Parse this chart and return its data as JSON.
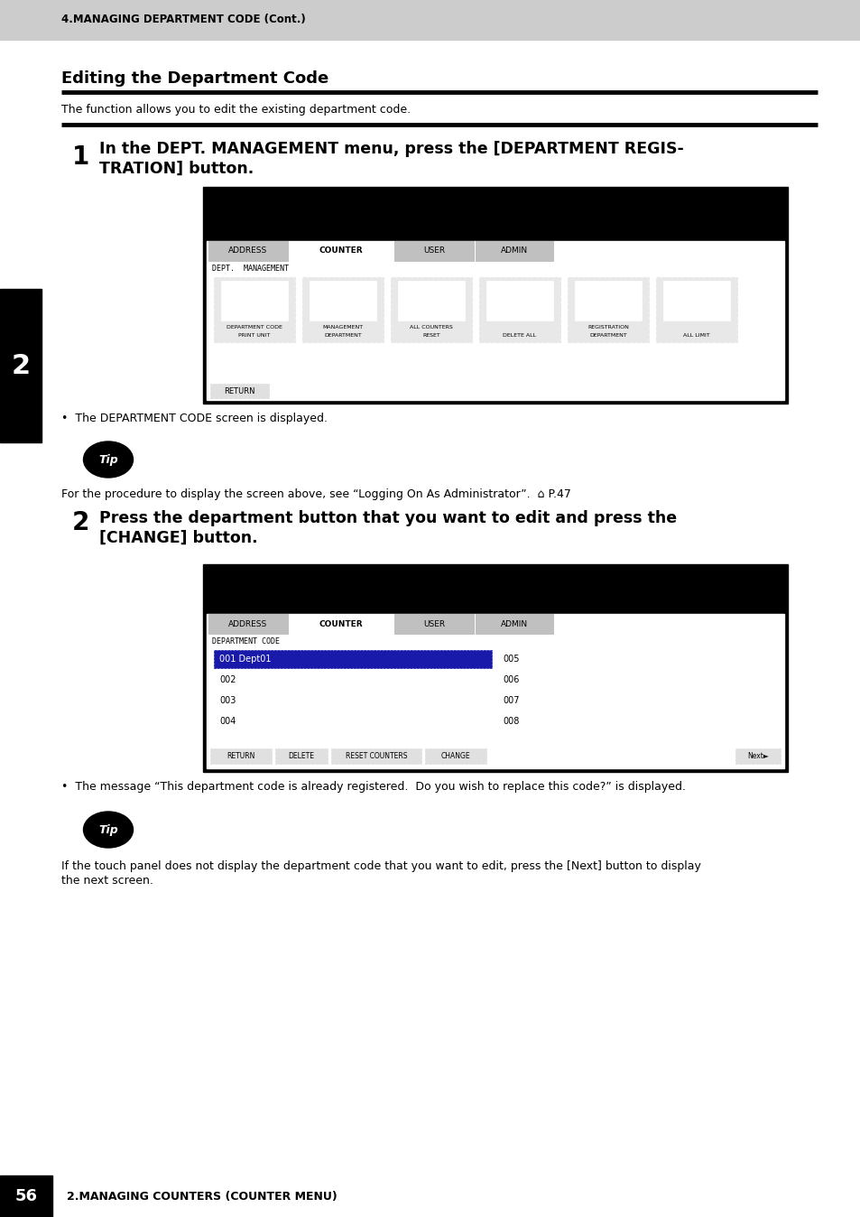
{
  "header_text": "4.MANAGING DEPARTMENT CODE (Cont.)",
  "header_bg": "#cccccc",
  "page_bg": "#ffffff",
  "section_title": "Editing the Department Code",
  "section_subtitle": "The function allows you to edit the existing department code.",
  "step1_num": "1",
  "step1_line1": "In the DEPT. MANAGEMENT menu, press the [DEPARTMENT REGIS-",
  "step1_line2": "TRATION] button.",
  "step1_bullet": "The DEPARTMENT CODE screen is displayed.",
  "tip1_body": "For the procedure to display the screen above, see “Logging On As Administrator”.  ⌂ P.47",
  "step2_num": "2",
  "step2_line1": "Press the department button that you want to edit and press the",
  "step2_line2": "[CHANGE] button.",
  "step2_bullet": "The message “This department code is already registered.  Do you wish to replace this code?” is displayed.",
  "tip2_line1": "If the touch panel does not display the department code that you want to edit, press the [Next] button to display",
  "tip2_line2": "the next screen.",
  "sidebar_bg": "#000000",
  "sidebar_text": "2",
  "footer_page": "56",
  "footer_text": "2.MANAGING COUNTERS (COUNTER MENU)"
}
